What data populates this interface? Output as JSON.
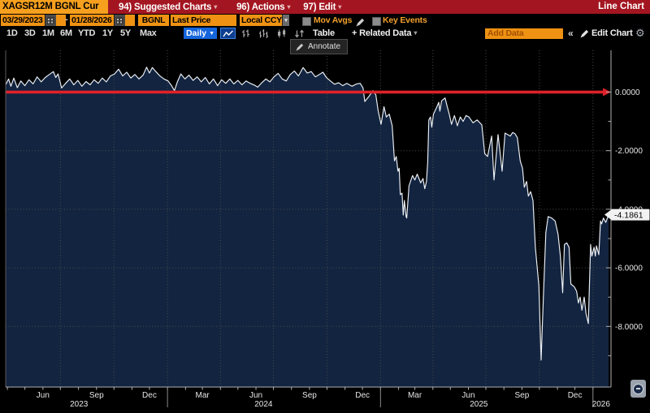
{
  "titlebar": {
    "security": "XAGSR12M BGNL Cur",
    "menus": [
      {
        "num": "94)",
        "label": "Suggested Charts"
      },
      {
        "num": "96)",
        "label": "Actions"
      },
      {
        "num": "97)",
        "label": "Edit"
      }
    ],
    "right_label": "Line Chart"
  },
  "settings_row": {
    "date_from": "03/29/2023",
    "date_separator": "-",
    "date_to": "01/28/2026",
    "source": "BGNL",
    "field": "Last Price",
    "currency": "Local CCY",
    "mov_avgs_label": "Mov Avgs",
    "key_events_label": "Key Events"
  },
  "toolbar": {
    "ranges": [
      "1D",
      "3D",
      "1M",
      "6M",
      "YTD",
      "1Y",
      "5Y",
      "Max"
    ],
    "period": "Daily",
    "table_label": "Table",
    "related_data_label": "+ Related Data",
    "add_data_placeholder": "Add Data",
    "collapse_label": "«",
    "edit_chart_label": "Edit Chart"
  },
  "icons": {
    "caret_down": "▾",
    "triangle_down": "▼",
    "gear": "⚙"
  },
  "annotate_tooltip": "Annotate",
  "colors": {
    "amber": "#f6a01e",
    "input_amber": "#ef9213",
    "bar_red": "#a31621",
    "accent_blue": "#1565dd",
    "zero_line_red": "#e02129",
    "price_line": "#edf1f6",
    "area_fill": "#122440",
    "grid": "#4d4d4d",
    "axis": "#b0b0b0",
    "tick_text": "#e6e6e6"
  },
  "chart_data": {
    "type": "line",
    "title": "XAGSR12M BGNL Curncy - Last Price (Local CCY), Daily",
    "grid": true,
    "legend": "none",
    "x_range": [
      "2023-03-29",
      "2026-01-28"
    ],
    "ylim": [
      -10.1,
      1.4
    ],
    "y_ticks": [
      0,
      -2,
      -4,
      -6,
      -8
    ],
    "y_tick_labels": [
      "0.0000",
      "-2.0000",
      "-4.0000",
      "-6.0000",
      "-8.0000"
    ],
    "zero_line": 0,
    "last_price": "-4.1861",
    "last_price_value": -4.1861,
    "x_axis": {
      "months": [
        {
          "d": "2023-06-01",
          "label": "Jun"
        },
        {
          "d": "2023-09-01",
          "label": "Sep"
        },
        {
          "d": "2023-12-01",
          "label": "Dec"
        },
        {
          "d": "2024-03-01",
          "label": "Mar"
        },
        {
          "d": "2024-06-01",
          "label": "Jun"
        },
        {
          "d": "2024-09-01",
          "label": "Sep"
        },
        {
          "d": "2024-12-01",
          "label": "Dec"
        },
        {
          "d": "2025-03-01",
          "label": "Mar"
        },
        {
          "d": "2025-06-01",
          "label": "Jun"
        },
        {
          "d": "2025-09-01",
          "label": "Sep"
        },
        {
          "d": "2025-12-01",
          "label": "Dec"
        }
      ],
      "years": [
        {
          "d": "2023-08-02",
          "label": "2023"
        },
        {
          "d": "2024-06-14",
          "label": "2024"
        },
        {
          "d": "2025-06-19",
          "label": "2025"
        },
        {
          "d": "2026-01-15",
          "label": "2026"
        }
      ],
      "separators": [
        "2024-01-01",
        "2025-01-01",
        "2026-01-01"
      ]
    },
    "dates": [
      "2023-03-29",
      "2023-04-03",
      "2023-04-07",
      "2023-04-12",
      "2023-04-18",
      "2023-04-24",
      "2023-05-01",
      "2023-05-08",
      "2023-05-15",
      "2023-05-22",
      "2023-05-29",
      "2023-06-05",
      "2023-06-12",
      "2023-06-19",
      "2023-06-23",
      "2023-06-27",
      "2023-07-03",
      "2023-07-10",
      "2023-07-17",
      "2023-07-24",
      "2023-07-31",
      "2023-08-07",
      "2023-08-14",
      "2023-08-21",
      "2023-08-28",
      "2023-09-04",
      "2023-09-11",
      "2023-09-18",
      "2023-09-25",
      "2023-10-02",
      "2023-10-09",
      "2023-10-16",
      "2023-10-23",
      "2023-10-30",
      "2023-11-06",
      "2023-11-13",
      "2023-11-20",
      "2023-11-26",
      "2023-12-01",
      "2023-12-06",
      "2023-12-12",
      "2023-12-19",
      "2023-12-26",
      "2024-01-02",
      "2024-01-08",
      "2024-01-13",
      "2024-01-18",
      "2024-01-24",
      "2024-01-31",
      "2024-02-07",
      "2024-02-14",
      "2024-02-21",
      "2024-02-28",
      "2024-03-06",
      "2024-03-13",
      "2024-03-20",
      "2024-03-27",
      "2024-04-03",
      "2024-04-10",
      "2024-04-17",
      "2024-04-24",
      "2024-05-01",
      "2024-05-08",
      "2024-05-15",
      "2024-05-22",
      "2024-05-29",
      "2024-06-04",
      "2024-06-11",
      "2024-06-18",
      "2024-06-25",
      "2024-07-02",
      "2024-07-09",
      "2024-07-16",
      "2024-07-23",
      "2024-07-30",
      "2024-08-06",
      "2024-08-13",
      "2024-08-21",
      "2024-08-28",
      "2024-09-04",
      "2024-09-11",
      "2024-09-18",
      "2024-09-24",
      "2024-09-30",
      "2024-10-07",
      "2024-10-14",
      "2024-10-21",
      "2024-10-28",
      "2024-11-04",
      "2024-11-13",
      "2024-11-21",
      "2024-11-27",
      "2024-12-02",
      "2024-12-05",
      "2024-12-12",
      "2024-12-19",
      "2024-12-24",
      "2024-12-28",
      "2025-01-02",
      "2025-01-07",
      "2025-01-11",
      "2025-01-16",
      "2025-01-21",
      "2025-01-25",
      "2025-01-28",
      "2025-01-31",
      "2025-02-02",
      "2025-02-04",
      "2025-02-07",
      "2025-02-09",
      "2025-02-11",
      "2025-02-14",
      "2025-02-15",
      "2025-02-19",
      "2025-02-25",
      "2025-03-01",
      "2025-03-05",
      "2025-03-11",
      "2025-03-15",
      "2025-03-18",
      "2025-03-21",
      "2025-03-23",
      "2025-03-25",
      "2025-03-28",
      "2025-03-30",
      "2025-04-02",
      "2025-04-08",
      "2025-04-11",
      "2025-04-13",
      "2025-04-16",
      "2025-04-22",
      "2025-04-25",
      "2025-04-29",
      "2025-05-03",
      "2025-05-08",
      "2025-05-13",
      "2025-05-18",
      "2025-05-23",
      "2025-05-28",
      "2025-06-02",
      "2025-06-09",
      "2025-06-16",
      "2025-06-24",
      "2025-06-29",
      "2025-07-04",
      "2025-07-11",
      "2025-07-15",
      "2025-07-22",
      "2025-07-29",
      "2025-08-03",
      "2025-08-12",
      "2025-08-16",
      "2025-08-20",
      "2025-08-24",
      "2025-08-29",
      "2025-09-02",
      "2025-09-05",
      "2025-09-09",
      "2025-09-12",
      "2025-09-16",
      "2025-09-20",
      "2025-09-24",
      "2025-09-30",
      "2025-10-04",
      "2025-10-08",
      "2025-10-12",
      "2025-10-16",
      "2025-10-22",
      "2025-10-28",
      "2025-11-02",
      "2025-11-06",
      "2025-11-10",
      "2025-11-13",
      "2025-11-17",
      "2025-11-21",
      "2025-11-24",
      "2025-11-30",
      "2025-12-04",
      "2025-12-07",
      "2025-12-10",
      "2025-12-13",
      "2025-12-17",
      "2025-12-20",
      "2025-12-24",
      "2025-12-28",
      "2025-12-30",
      "2026-01-03",
      "2026-01-05",
      "2026-01-07",
      "2026-01-11",
      "2026-01-14",
      "2026-01-16",
      "2026-01-19",
      "2026-01-23",
      "2026-01-28"
    ],
    "values": [
      0.25,
      0.45,
      0.2,
      0.48,
      0.15,
      0.38,
      0.22,
      0.42,
      0.28,
      0.52,
      0.35,
      0.5,
      0.6,
      0.7,
      0.5,
      0.62,
      0.14,
      0.3,
      0.45,
      0.25,
      0.4,
      0.2,
      0.36,
      0.25,
      0.42,
      0.3,
      0.48,
      0.35,
      0.55,
      0.62,
      0.78,
      0.55,
      0.68,
      0.48,
      0.6,
      0.45,
      0.58,
      0.85,
      0.65,
      0.84,
      0.7,
      0.55,
      0.45,
      0.38,
      0.22,
      0.05,
      0.35,
      0.62,
      0.45,
      0.58,
      0.4,
      0.52,
      0.35,
      0.5,
      0.28,
      0.45,
      0.22,
      0.42,
      0.3,
      0.45,
      0.28,
      0.4,
      0.25,
      0.38,
      0.3,
      0.24,
      0.17,
      0.32,
      0.45,
      0.35,
      0.52,
      0.64,
      0.45,
      0.38,
      0.6,
      0.72,
      0.55,
      0.84,
      0.65,
      0.7,
      0.52,
      0.6,
      0.68,
      0.5,
      0.38,
      0.27,
      0.32,
      0.22,
      0.3,
      0.2,
      0.28,
      0.3,
      0.14,
      -0.32,
      -0.15,
      0.05,
      -0.1,
      -0.65,
      -1.1,
      -0.5,
      -0.85,
      -0.75,
      -1.15,
      -2.35,
      -2.2,
      -2.7,
      -2.6,
      -3.5,
      -3.45,
      -4.2,
      -3.7,
      -4.25,
      -4.3,
      -3.2,
      -2.85,
      -3.0,
      -2.8,
      -3.1,
      -2.95,
      -3.3,
      -3.05,
      -2.4,
      -0.95,
      -0.85,
      -1.2,
      -0.75,
      -0.5,
      -0.35,
      -0.65,
      -0.3,
      -0.2,
      -0.45,
      -0.75,
      -1.1,
      -0.8,
      -1.15,
      -0.85,
      -1.0,
      -0.8,
      -0.85,
      -1.05,
      -0.95,
      -1.12,
      -2.1,
      -2.2,
      -1.5,
      -3.0,
      -1.45,
      -2.7,
      -1.4,
      -1.5,
      -1.38,
      -1.42,
      -1.55,
      -2.35,
      -2.6,
      -3.25,
      -3.05,
      -3.55,
      -3.4,
      -3.7,
      -5.3,
      -6.6,
      -9.15,
      -6.9,
      -4.8,
      -4.25,
      -4.3,
      -4.4,
      -4.85,
      -5.6,
      -6.85,
      -5.2,
      -5.15,
      -5.3,
      -6.55,
      -6.65,
      -6.8,
      -7.2,
      -7.0,
      -7.45,
      -7.0,
      -7.55,
      -7.9,
      -5.2,
      -5.6,
      -5.3,
      -5.6,
      -5.25,
      -5.55,
      -4.4,
      -4.5,
      -4.3,
      -4.45,
      -4.1861
    ]
  }
}
